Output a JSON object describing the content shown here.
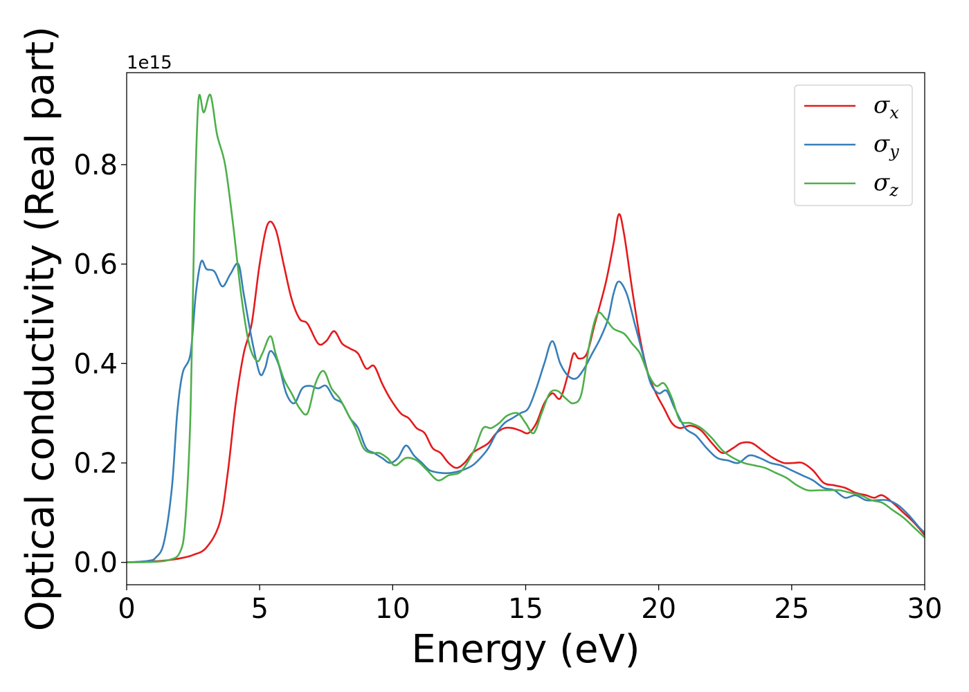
{
  "chart_data": {
    "type": "line",
    "title": "",
    "xlabel": "Energy (eV)",
    "ylabel": "Optical conductivity (Real part)",
    "y_offset_label": "1e15",
    "xlim": [
      0,
      30
    ],
    "ylim": [
      -0.045,
      0.985
    ],
    "x_ticks": [
      0,
      5,
      10,
      15,
      20,
      25,
      30
    ],
    "x_tick_labels": [
      "0",
      "5",
      "10",
      "15",
      "20",
      "25",
      "30"
    ],
    "y_ticks": [
      0.0,
      0.2,
      0.4,
      0.6,
      0.8
    ],
    "y_tick_labels": [
      "0.0",
      "0.2",
      "0.4",
      "0.6",
      "0.8"
    ],
    "grid": false,
    "legend_position": "top-right",
    "series": [
      {
        "name": "σx",
        "symbol": "σ",
        "subscript": "x",
        "color": "#e41a1c",
        "points": [
          [
            0,
            0.0
          ],
          [
            1.0,
            0.002
          ],
          [
            1.5,
            0.004
          ],
          [
            2.0,
            0.008
          ],
          [
            2.5,
            0.015
          ],
          [
            3.0,
            0.03
          ],
          [
            3.5,
            0.08
          ],
          [
            3.8,
            0.18
          ],
          [
            4.1,
            0.32
          ],
          [
            4.4,
            0.42
          ],
          [
            4.7,
            0.48
          ],
          [
            5.0,
            0.6
          ],
          [
            5.3,
            0.68
          ],
          [
            5.6,
            0.67
          ],
          [
            5.9,
            0.6
          ],
          [
            6.2,
            0.53
          ],
          [
            6.5,
            0.49
          ],
          [
            6.8,
            0.48
          ],
          [
            7.2,
            0.44
          ],
          [
            7.5,
            0.445
          ],
          [
            7.8,
            0.465
          ],
          [
            8.1,
            0.44
          ],
          [
            8.4,
            0.43
          ],
          [
            8.7,
            0.42
          ],
          [
            9.0,
            0.39
          ],
          [
            9.3,
            0.395
          ],
          [
            9.6,
            0.36
          ],
          [
            9.9,
            0.33
          ],
          [
            10.3,
            0.3
          ],
          [
            10.6,
            0.29
          ],
          [
            10.9,
            0.27
          ],
          [
            11.2,
            0.26
          ],
          [
            11.5,
            0.23
          ],
          [
            11.8,
            0.22
          ],
          [
            12.1,
            0.2
          ],
          [
            12.4,
            0.19
          ],
          [
            12.7,
            0.2
          ],
          [
            13.0,
            0.22
          ],
          [
            13.3,
            0.23
          ],
          [
            13.6,
            0.24
          ],
          [
            13.9,
            0.26
          ],
          [
            14.2,
            0.27
          ],
          [
            14.5,
            0.27
          ],
          [
            14.8,
            0.265
          ],
          [
            15.1,
            0.26
          ],
          [
            15.4,
            0.28
          ],
          [
            15.7,
            0.32
          ],
          [
            16.0,
            0.34
          ],
          [
            16.3,
            0.33
          ],
          [
            16.6,
            0.38
          ],
          [
            16.8,
            0.42
          ],
          [
            17.0,
            0.41
          ],
          [
            17.3,
            0.42
          ],
          [
            17.6,
            0.48
          ],
          [
            18.0,
            0.56
          ],
          [
            18.3,
            0.64
          ],
          [
            18.5,
            0.7
          ],
          [
            18.7,
            0.66
          ],
          [
            19.0,
            0.55
          ],
          [
            19.3,
            0.45
          ],
          [
            19.6,
            0.38
          ],
          [
            19.9,
            0.34
          ],
          [
            20.2,
            0.31
          ],
          [
            20.5,
            0.28
          ],
          [
            20.8,
            0.27
          ],
          [
            21.2,
            0.275
          ],
          [
            21.6,
            0.265
          ],
          [
            22.0,
            0.24
          ],
          [
            22.4,
            0.22
          ],
          [
            22.8,
            0.23
          ],
          [
            23.1,
            0.24
          ],
          [
            23.5,
            0.24
          ],
          [
            23.9,
            0.225
          ],
          [
            24.3,
            0.21
          ],
          [
            24.7,
            0.2
          ],
          [
            25.1,
            0.2
          ],
          [
            25.4,
            0.2
          ],
          [
            25.8,
            0.185
          ],
          [
            26.2,
            0.16
          ],
          [
            26.6,
            0.155
          ],
          [
            27.0,
            0.15
          ],
          [
            27.4,
            0.14
          ],
          [
            27.8,
            0.135
          ],
          [
            28.1,
            0.13
          ],
          [
            28.4,
            0.135
          ],
          [
            28.8,
            0.12
          ],
          [
            29.2,
            0.1
          ],
          [
            29.6,
            0.08
          ],
          [
            30,
            0.055
          ]
        ]
      },
      {
        "name": "σy",
        "symbol": "σ",
        "subscript": "y",
        "color": "#377eb8",
        "points": [
          [
            0,
            0.0
          ],
          [
            0.8,
            0.003
          ],
          [
            1.1,
            0.01
          ],
          [
            1.4,
            0.04
          ],
          [
            1.7,
            0.15
          ],
          [
            1.9,
            0.3
          ],
          [
            2.1,
            0.38
          ],
          [
            2.4,
            0.42
          ],
          [
            2.6,
            0.54
          ],
          [
            2.8,
            0.605
          ],
          [
            3.0,
            0.59
          ],
          [
            3.3,
            0.585
          ],
          [
            3.6,
            0.555
          ],
          [
            3.9,
            0.58
          ],
          [
            4.2,
            0.6
          ],
          [
            4.4,
            0.54
          ],
          [
            4.7,
            0.45
          ],
          [
            5.0,
            0.38
          ],
          [
            5.2,
            0.39
          ],
          [
            5.4,
            0.425
          ],
          [
            5.7,
            0.4
          ],
          [
            6.0,
            0.34
          ],
          [
            6.3,
            0.32
          ],
          [
            6.6,
            0.35
          ],
          [
            6.9,
            0.355
          ],
          [
            7.2,
            0.35
          ],
          [
            7.5,
            0.355
          ],
          [
            7.8,
            0.33
          ],
          [
            8.1,
            0.32
          ],
          [
            8.4,
            0.29
          ],
          [
            8.7,
            0.27
          ],
          [
            9.0,
            0.23
          ],
          [
            9.3,
            0.22
          ],
          [
            9.6,
            0.21
          ],
          [
            9.9,
            0.2
          ],
          [
            10.2,
            0.21
          ],
          [
            10.5,
            0.235
          ],
          [
            10.8,
            0.215
          ],
          [
            11.1,
            0.2
          ],
          [
            11.4,
            0.185
          ],
          [
            11.8,
            0.18
          ],
          [
            12.2,
            0.18
          ],
          [
            12.6,
            0.185
          ],
          [
            13.0,
            0.195
          ],
          [
            13.3,
            0.21
          ],
          [
            13.6,
            0.23
          ],
          [
            13.9,
            0.26
          ],
          [
            14.2,
            0.28
          ],
          [
            14.5,
            0.29
          ],
          [
            14.8,
            0.3
          ],
          [
            15.1,
            0.31
          ],
          [
            15.4,
            0.35
          ],
          [
            15.7,
            0.4
          ],
          [
            16.0,
            0.445
          ],
          [
            16.3,
            0.4
          ],
          [
            16.6,
            0.375
          ],
          [
            16.9,
            0.37
          ],
          [
            17.2,
            0.39
          ],
          [
            17.5,
            0.42
          ],
          [
            17.8,
            0.45
          ],
          [
            18.1,
            0.49
          ],
          [
            18.3,
            0.54
          ],
          [
            18.5,
            0.565
          ],
          [
            18.8,
            0.54
          ],
          [
            19.1,
            0.48
          ],
          [
            19.4,
            0.42
          ],
          [
            19.7,
            0.36
          ],
          [
            20.0,
            0.34
          ],
          [
            20.3,
            0.345
          ],
          [
            20.6,
            0.31
          ],
          [
            21.0,
            0.27
          ],
          [
            21.4,
            0.255
          ],
          [
            21.8,
            0.23
          ],
          [
            22.2,
            0.21
          ],
          [
            22.6,
            0.205
          ],
          [
            23.0,
            0.2
          ],
          [
            23.4,
            0.215
          ],
          [
            23.8,
            0.21
          ],
          [
            24.2,
            0.2
          ],
          [
            24.6,
            0.195
          ],
          [
            25.0,
            0.185
          ],
          [
            25.4,
            0.175
          ],
          [
            25.8,
            0.165
          ],
          [
            26.2,
            0.15
          ],
          [
            26.6,
            0.145
          ],
          [
            27.0,
            0.13
          ],
          [
            27.4,
            0.135
          ],
          [
            27.8,
            0.125
          ],
          [
            28.2,
            0.125
          ],
          [
            28.6,
            0.125
          ],
          [
            29.0,
            0.115
          ],
          [
            29.4,
            0.095
          ],
          [
            29.8,
            0.07
          ],
          [
            30,
            0.06
          ]
        ]
      },
      {
        "name": "σz",
        "symbol": "σ",
        "subscript": "z",
        "color": "#4daf4a",
        "points": [
          [
            0,
            0.0
          ],
          [
            1.0,
            0.001
          ],
          [
            1.6,
            0.005
          ],
          [
            2.0,
            0.02
          ],
          [
            2.2,
            0.08
          ],
          [
            2.4,
            0.3
          ],
          [
            2.55,
            0.7
          ],
          [
            2.7,
            0.93
          ],
          [
            2.9,
            0.905
          ],
          [
            3.15,
            0.94
          ],
          [
            3.4,
            0.86
          ],
          [
            3.7,
            0.8
          ],
          [
            4.0,
            0.68
          ],
          [
            4.3,
            0.54
          ],
          [
            4.6,
            0.44
          ],
          [
            4.9,
            0.405
          ],
          [
            5.1,
            0.42
          ],
          [
            5.4,
            0.455
          ],
          [
            5.6,
            0.42
          ],
          [
            5.9,
            0.37
          ],
          [
            6.2,
            0.34
          ],
          [
            6.5,
            0.31
          ],
          [
            6.8,
            0.3
          ],
          [
            7.1,
            0.36
          ],
          [
            7.4,
            0.385
          ],
          [
            7.7,
            0.35
          ],
          [
            8.0,
            0.33
          ],
          [
            8.3,
            0.3
          ],
          [
            8.6,
            0.27
          ],
          [
            8.9,
            0.23
          ],
          [
            9.2,
            0.22
          ],
          [
            9.5,
            0.22
          ],
          [
            9.8,
            0.21
          ],
          [
            10.1,
            0.195
          ],
          [
            10.5,
            0.21
          ],
          [
            10.9,
            0.205
          ],
          [
            11.3,
            0.185
          ],
          [
            11.7,
            0.165
          ],
          [
            12.1,
            0.175
          ],
          [
            12.5,
            0.18
          ],
          [
            12.8,
            0.2
          ],
          [
            13.1,
            0.23
          ],
          [
            13.4,
            0.27
          ],
          [
            13.7,
            0.27
          ],
          [
            14.0,
            0.28
          ],
          [
            14.3,
            0.295
          ],
          [
            14.7,
            0.3
          ],
          [
            15.0,
            0.28
          ],
          [
            15.3,
            0.26
          ],
          [
            15.6,
            0.3
          ],
          [
            15.9,
            0.34
          ],
          [
            16.2,
            0.345
          ],
          [
            16.5,
            0.33
          ],
          [
            16.8,
            0.32
          ],
          [
            17.1,
            0.34
          ],
          [
            17.4,
            0.44
          ],
          [
            17.7,
            0.5
          ],
          [
            18.0,
            0.49
          ],
          [
            18.3,
            0.47
          ],
          [
            18.7,
            0.46
          ],
          [
            19.0,
            0.44
          ],
          [
            19.3,
            0.42
          ],
          [
            19.6,
            0.38
          ],
          [
            19.9,
            0.355
          ],
          [
            20.2,
            0.36
          ],
          [
            20.5,
            0.33
          ],
          [
            20.8,
            0.285
          ],
          [
            21.2,
            0.28
          ],
          [
            21.6,
            0.27
          ],
          [
            22.0,
            0.25
          ],
          [
            22.4,
            0.225
          ],
          [
            22.8,
            0.21
          ],
          [
            23.2,
            0.2
          ],
          [
            23.6,
            0.195
          ],
          [
            24.0,
            0.19
          ],
          [
            24.4,
            0.18
          ],
          [
            24.8,
            0.17
          ],
          [
            25.2,
            0.155
          ],
          [
            25.6,
            0.145
          ],
          [
            26.0,
            0.145
          ],
          [
            26.4,
            0.145
          ],
          [
            26.8,
            0.145
          ],
          [
            27.2,
            0.14
          ],
          [
            27.6,
            0.135
          ],
          [
            28.0,
            0.125
          ],
          [
            28.4,
            0.12
          ],
          [
            28.8,
            0.105
          ],
          [
            29.2,
            0.09
          ],
          [
            29.6,
            0.07
          ],
          [
            30,
            0.05
          ]
        ]
      }
    ]
  }
}
